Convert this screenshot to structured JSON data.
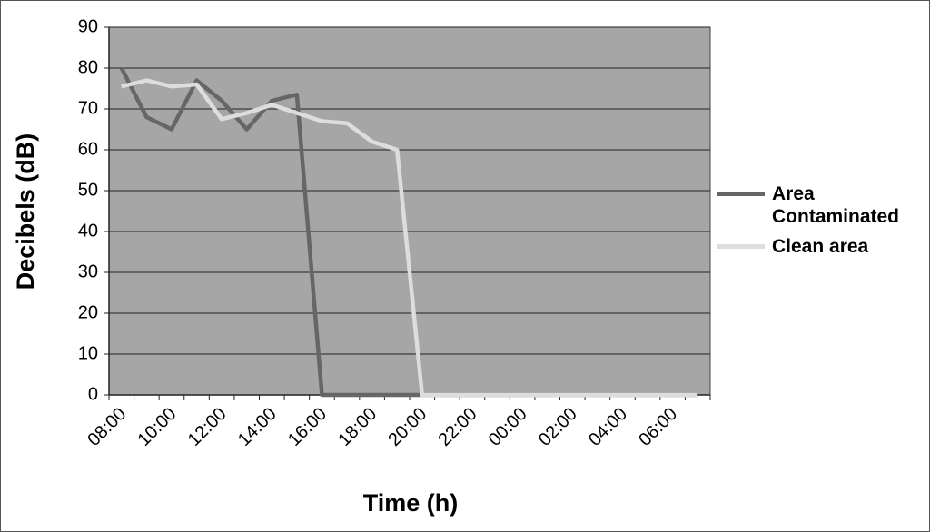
{
  "chart_data": {
    "type": "line",
    "y_label": "Decibels (dB)",
    "x_label": "Time (h)",
    "categories": [
      "08:00",
      null,
      "10:00",
      null,
      "12:00",
      null,
      "14:00",
      null,
      "16:00",
      null,
      "18:00",
      null,
      "20:00",
      null,
      "22:00",
      null,
      "00:00",
      null,
      "02:00",
      null,
      "04:00",
      null,
      "06:00",
      null
    ],
    "series": [
      {
        "name": "Area Contaminated",
        "color": "#666666",
        "values": [
          80,
          68,
          65,
          77,
          72,
          65,
          72,
          73.5,
          0,
          0,
          0,
          0,
          0,
          0,
          0,
          0,
          0,
          0,
          0,
          0,
          0,
          0,
          0,
          0
        ]
      },
      {
        "name": "Clean area",
        "color": "#dddddd",
        "values": [
          75.5,
          77,
          75.5,
          76,
          67.5,
          69,
          71,
          69,
          67,
          66.5,
          62,
          60,
          0,
          0,
          0,
          0,
          0,
          0,
          0,
          0,
          0,
          0,
          0,
          0
        ]
      }
    ],
    "ylim": [
      0,
      90
    ],
    "yticks": [
      0,
      10,
      20,
      30,
      40,
      50,
      60,
      70,
      80,
      90
    ],
    "grid": true,
    "legend": "right",
    "plot_background": "#a6a6a6"
  }
}
